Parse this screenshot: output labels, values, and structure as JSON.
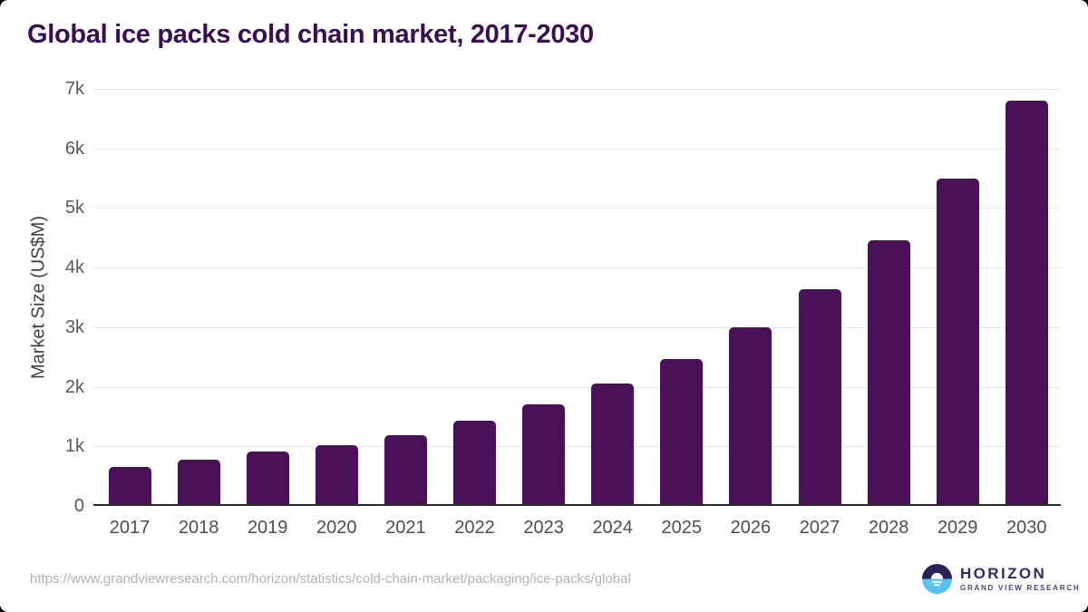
{
  "title": "Global ice packs cold chain market, 2017-2030",
  "footer": {
    "source_url": "https://www.grandviewresearch.com/horizon/statistics/cold-chain-market/packaging/ice-packs/global",
    "logo_name": "HORIZON",
    "logo_subtitle": "GRAND VIEW RESEARCH"
  },
  "colors": {
    "bar": "#4a1158",
    "title": "#3a0f52",
    "gridline": "#e8e8e8",
    "axis_line": "#2b2b2b",
    "y_tick_label": "#595959",
    "x_tick_label": "#4d4d4d",
    "axis_title": "#3f3f3f",
    "source_url": "#b3b3b3",
    "logo_dark_half": "#2b2153",
    "logo_blue_half": "#5ac2ee"
  },
  "chart_data": {
    "type": "bar",
    "title": "Global ice packs cold chain market, 2017-2030",
    "xlabel": "",
    "ylabel": "Market Size (US$M)",
    "categories": [
      "2017",
      "2018",
      "2019",
      "2020",
      "2021",
      "2022",
      "2023",
      "2024",
      "2025",
      "2026",
      "2027",
      "2028",
      "2029",
      "2030"
    ],
    "values": [
      650,
      770,
      910,
      1020,
      1190,
      1430,
      1700,
      2050,
      2460,
      3000,
      3630,
      4460,
      5490,
      6800
    ],
    "ylim": [
      0,
      7000
    ],
    "yticks": [
      {
        "value": 0,
        "label": "0"
      },
      {
        "value": 1000,
        "label": "1k"
      },
      {
        "value": 2000,
        "label": "2k"
      },
      {
        "value": 3000,
        "label": "3k"
      },
      {
        "value": 4000,
        "label": "4k"
      },
      {
        "value": 5000,
        "label": "5k"
      },
      {
        "value": 6000,
        "label": "6k"
      },
      {
        "value": 7000,
        "label": "7k"
      }
    ],
    "grid": "horizontal",
    "legend": "none"
  }
}
